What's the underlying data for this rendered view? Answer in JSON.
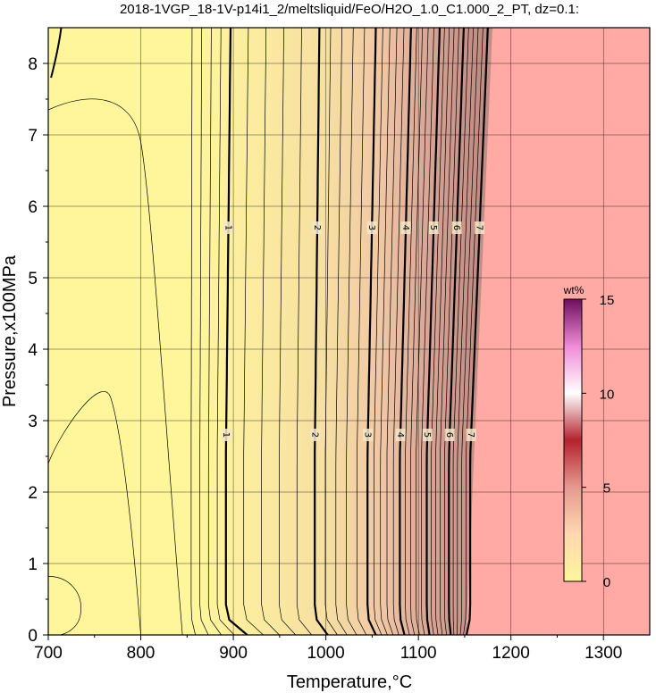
{
  "chart_data": {
    "type": "heatmap",
    "title": "2018-1VGP_18-1V-p14i1_2/meltsliquid/FeO/H2O_1.0_C1.000_2_PT, dz=0.1:",
    "xlabel": "Temperature,°C",
    "ylabel": "Pressure,x100MPa",
    "xlim": [
      700,
      1350
    ],
    "ylim": [
      0,
      8.5
    ],
    "x_ticks": [
      "700",
      "800",
      "900",
      "1000",
      "1100",
      "1200",
      "1300"
    ],
    "y_ticks": [
      "0",
      "1",
      "2",
      "3",
      "4",
      "5",
      "6",
      "7",
      "8"
    ],
    "grid": true,
    "colorbar": {
      "unit": "wt%",
      "range": [
        0,
        15
      ],
      "ticks": [
        "0",
        "5",
        "10",
        "15"
      ],
      "colors": [
        "#fff69c",
        "#ffd8b0",
        "#e59a90",
        "#b4222f",
        "#ffffff",
        "#ef8bd5",
        "#6d0f5f"
      ],
      "placement": "right"
    },
    "fill_colors": {
      "low": "#fff69c",
      "mid": "#f0c7a5",
      "high": "#c28d84",
      "above_liquidus": "#ffaaa5"
    },
    "liquidus_temperature": {
      "at_pressure_0": 1152,
      "at_pressure_8.5": 1180
    },
    "major_contours": [
      {
        "label": "1",
        "value": 1,
        "t_at_high_p": 897,
        "t_at_low_p": 892,
        "t_at_base": 915
      },
      {
        "label": "2",
        "value": 2,
        "t_at_high_p": 993,
        "t_at_low_p": 988,
        "t_at_base": 1002
      },
      {
        "label": "3",
        "value": 3,
        "t_at_high_p": 1054,
        "t_at_low_p": 1045,
        "t_at_base": 1054
      },
      {
        "label": "4",
        "value": 4,
        "t_at_high_p": 1092,
        "t_at_low_p": 1080,
        "t_at_base": 1085
      },
      {
        "label": "5",
        "value": 5,
        "t_at_high_p": 1123,
        "t_at_low_p": 1109,
        "t_at_base": 1112
      },
      {
        "label": "6",
        "value": 6,
        "t_at_high_p": 1149,
        "t_at_low_p": 1133,
        "t_at_base": 1135
      },
      {
        "label": "7",
        "value": 7,
        "t_at_high_p": 1175,
        "t_at_low_p": 1156,
        "t_at_base": 1152
      }
    ],
    "major_label_pressures": [
      5.7,
      2.8
    ],
    "minor_contour_interval": 0.1
  }
}
